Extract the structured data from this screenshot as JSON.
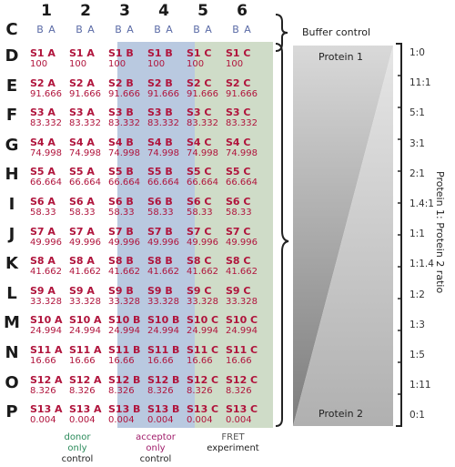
{
  "columns": [
    "1",
    "2",
    "3",
    "4",
    "5",
    "6"
  ],
  "ba_label": "B A",
  "row_c": "C",
  "rows": [
    {
      "letter": "D",
      "name": "S1",
      "value": "100"
    },
    {
      "letter": "E",
      "name": "S2",
      "value": "91.666"
    },
    {
      "letter": "F",
      "name": "S3",
      "value": "83.332"
    },
    {
      "letter": "G",
      "name": "S4",
      "value": "74.998"
    },
    {
      "letter": "H",
      "name": "S5",
      "value": "66.664"
    },
    {
      "letter": "I",
      "name": "S6",
      "value": "58.33"
    },
    {
      "letter": "J",
      "name": "S7",
      "value": "49.996"
    },
    {
      "letter": "K",
      "name": "S8",
      "value": "41.662"
    },
    {
      "letter": "L",
      "name": "S9",
      "value": "33.328"
    },
    {
      "letter": "M",
      "name": "S10",
      "value": "24.994"
    },
    {
      "letter": "N",
      "name": "S11",
      "value": "16.66"
    },
    {
      "letter": "O",
      "name": "S12",
      "value": "8.326"
    },
    {
      "letter": "P",
      "name": "S13",
      "value": "0.004"
    }
  ],
  "column_suffix": [
    "A",
    "A",
    "B",
    "B",
    "C",
    "C"
  ],
  "ratios": [
    "1:0",
    "11:1",
    "5:1",
    "3:1",
    "2:1",
    "1.4:1",
    "1:1",
    "1:1.4",
    "1:2",
    "1:3",
    "1:5",
    "1:11",
    "0:1"
  ],
  "buffer_control": "Buffer control",
  "protein1": "Protein 1",
  "protein2": "Protein 2",
  "axis_label": "Protein 1: Protein 2 ratio",
  "footers": {
    "donor": [
      "donor",
      "only",
      "control"
    ],
    "acceptor": [
      "acceptor",
      "only",
      "control"
    ],
    "fret": [
      "FRET",
      "experiment"
    ]
  },
  "colors": {
    "acceptor_band": "#b9c9e0",
    "fret_band": "#cfdcc8",
    "cell_text": "#b0143c",
    "donor_text": "#2a8a5a",
    "acceptor_text": "#a01c6a",
    "fret_text": "#555555"
  }
}
